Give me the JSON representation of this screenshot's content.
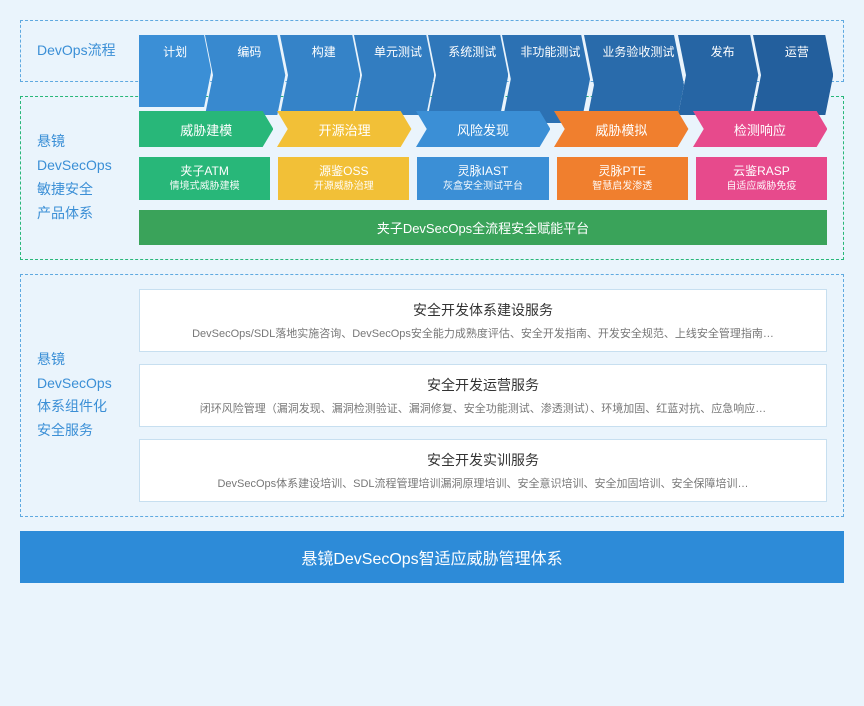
{
  "background_color": "#eaf4fc",
  "section1": {
    "label": "DevOps流程",
    "border_color": "#5fa9e0",
    "stages": [
      {
        "label": "计划",
        "color": "#3b8fd6"
      },
      {
        "label": "编码",
        "color": "#3889cf"
      },
      {
        "label": "构建",
        "color": "#3583c8"
      },
      {
        "label": "单元测试",
        "color": "#327dc1"
      },
      {
        "label": "系统测试",
        "color": "#2f77ba"
      },
      {
        "label": "非功能测试",
        "color": "#2c71b3"
      },
      {
        "label": "业务验收测试",
        "color": "#296bab"
      },
      {
        "label": "发布",
        "color": "#2665a4"
      },
      {
        "label": "运营",
        "color": "#235f9d"
      }
    ]
  },
  "section2": {
    "label_lines": [
      "悬镜",
      "DevSecOps",
      "敏捷安全",
      "产品体系"
    ],
    "border_color": "#28b779",
    "phases": [
      {
        "label": "威胁建模",
        "color": "#28b779"
      },
      {
        "label": "开源治理",
        "color": "#f2c037"
      },
      {
        "label": "风险发现",
        "color": "#3b8fd6"
      },
      {
        "label": "威胁模拟",
        "color": "#f07f2e"
      },
      {
        "label": "检测响应",
        "color": "#e74a8c"
      }
    ],
    "products": [
      {
        "title": "夹子ATM",
        "sub": "情境式威胁建模",
        "color": "#28b779"
      },
      {
        "title": "源鉴OSS",
        "sub": "开源威胁治理",
        "color": "#f2c037"
      },
      {
        "title": "灵脉IAST",
        "sub": "灰盒安全测试平台",
        "color": "#3b8fd6"
      },
      {
        "title": "灵脉PTE",
        "sub": "智慧启发渗透",
        "color": "#f07f2e"
      },
      {
        "title": "云鉴RASP",
        "sub": "自适应威胁免疫",
        "color": "#e74a8c"
      }
    ],
    "platform": {
      "label": "夹子DevSecOps全流程安全赋能平台",
      "color": "#3aa35a"
    }
  },
  "section3": {
    "label_lines": [
      "悬镜",
      "DevSecOps",
      "体系组件化",
      "安全服务"
    ],
    "border_color": "#5fa9e0",
    "services": [
      {
        "title": "安全开发体系建设服务",
        "desc": "DevSecOps/SDL落地实施咨询、DevSecOps安全能力成熟度评估、安全开发指南、开发安全规范、上线安全管理指南…"
      },
      {
        "title": "安全开发运营服务",
        "desc": "闭环风险管理（漏洞发现、漏洞检测验证、漏洞修复、安全功能测试、渗透测试）、环境加固、红蓝对抗、应急响应…"
      },
      {
        "title": "安全开发实训服务",
        "desc": "DevSecOps体系建设培训、SDL流程管理培训漏洞原理培训、安全意识培训、安全加固培训、安全保障培训…"
      }
    ]
  },
  "footer": {
    "label": "悬镜DevSecOps智适应威胁管理体系",
    "color": "#2d8bd8"
  }
}
